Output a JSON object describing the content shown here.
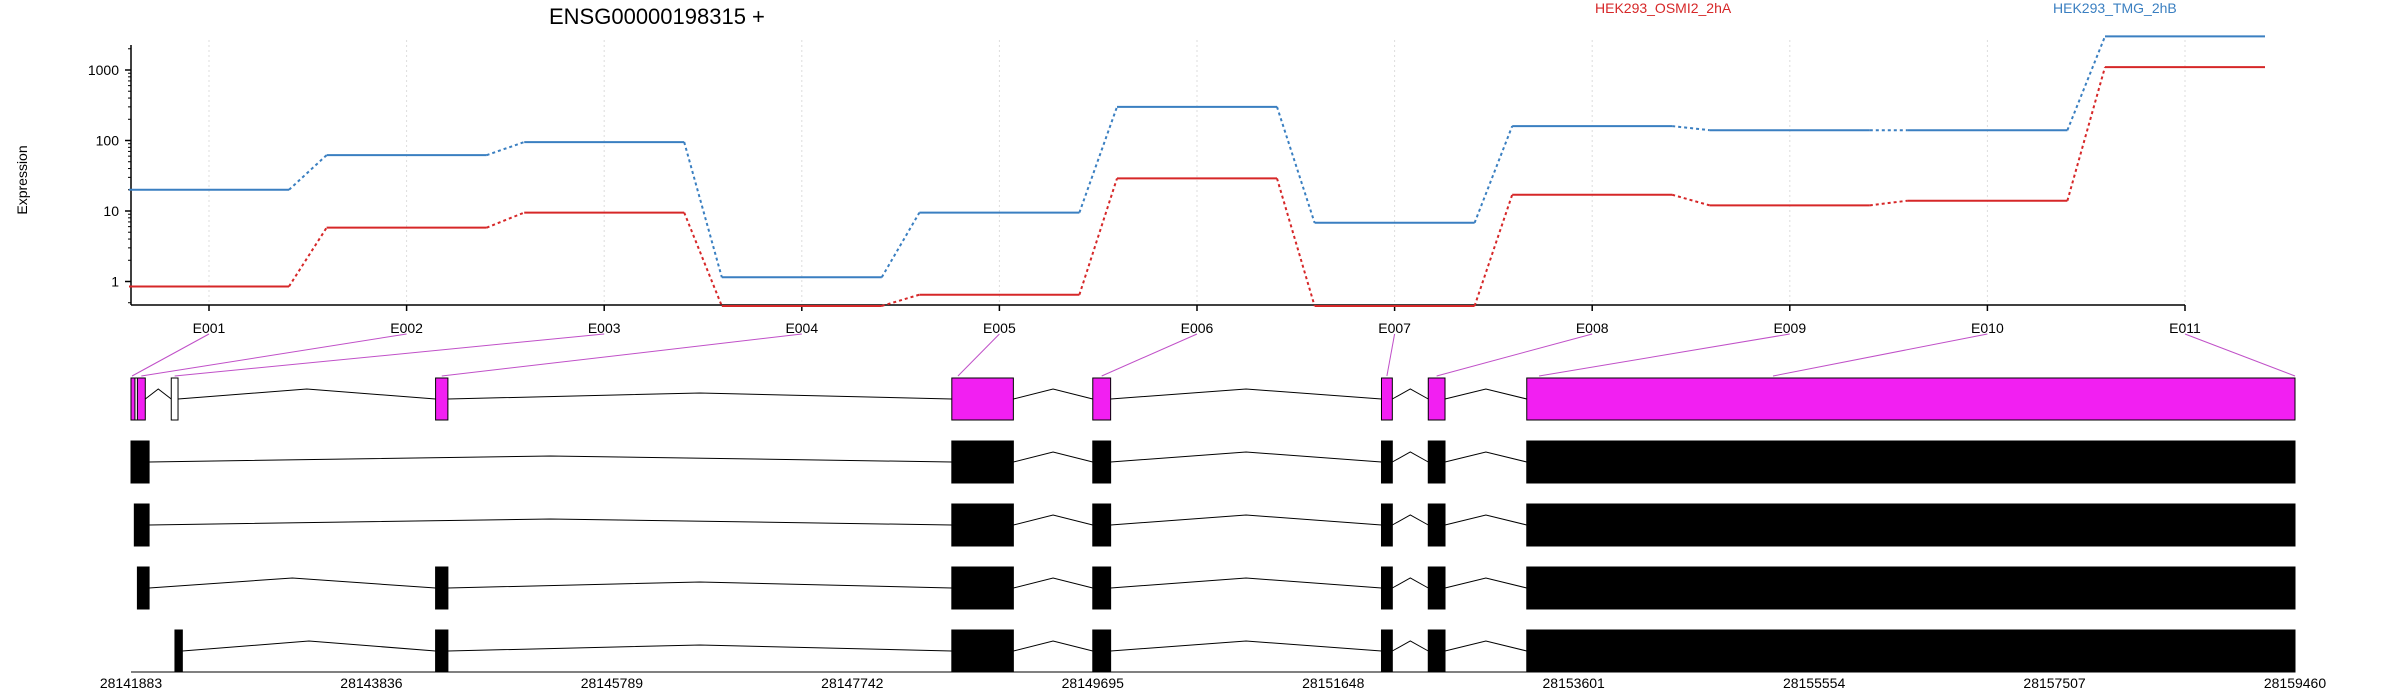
{
  "chart_data": [
    {
      "type": "line",
      "title": "ENSG00000198315 +",
      "xlabel": "",
      "ylabel": "Expression",
      "x_scale": "categorical",
      "y_scale": "log",
      "y_ticks": [
        "1",
        "10",
        "100",
        "1000"
      ],
      "categories": [
        "E001",
        "E002",
        "E003",
        "E004",
        "E005",
        "E006",
        "E007",
        "E008",
        "E009",
        "E010",
        "E011"
      ],
      "grid": "vertical dotted at each category",
      "legend": "top-right, text labels",
      "series": [
        {
          "name": "HEK293_OSMI2_2hA",
          "color": "#d62728",
          "values": [
            0.85,
            5.8,
            9.5,
            0.45,
            0.65,
            29,
            0.45,
            17,
            12,
            14,
            1100
          ]
        },
        {
          "name": "HEK293_TMG_2hB",
          "color": "#3a7fc1",
          "values": [
            20,
            62,
            95,
            1.15,
            9.5,
            300,
            6.8,
            160,
            140,
            140,
            3000
          ]
        }
      ]
    },
    {
      "type": "gene_structure",
      "x_ticks": [
        "28141883",
        "28143836",
        "28145789",
        "28147742",
        "28149695",
        "28151648",
        "28153601",
        "28155554",
        "28157507",
        "28159460"
      ],
      "x_range": [
        28141883,
        28159460
      ],
      "exon_color": "#f21ff2",
      "tracks": [
        {
          "exons": [
            [
              28141883,
              28141900
            ],
            [
              28141915,
              28141925
            ],
            [
              28141935,
              28141999
            ],
            [
              28142210,
              28142265
            ],
            [
              28144357,
              28144457
            ],
            [
              28148550,
              28149050
            ],
            [
              28149695,
              28149840
            ],
            [
              28152040,
              28152128
            ],
            [
              28152420,
              28152556
            ],
            [
              28153220,
              28159460
            ]
          ],
          "filled": [
            true,
            false,
            true,
            false,
            true,
            true,
            true,
            true,
            true,
            true
          ]
        },
        {
          "exons": [
            [
              28141883,
              28142030
            ],
            [
              28148550,
              28149050
            ],
            [
              28149695,
              28149840
            ],
            [
              28152040,
              28152128
            ],
            [
              28152420,
              28152556
            ],
            [
              28153220,
              28159460
            ]
          ]
        },
        {
          "exons": [
            [
              28141910,
              28142030
            ],
            [
              28148550,
              28149050
            ],
            [
              28149695,
              28149840
            ],
            [
              28152040,
              28152128
            ],
            [
              28152420,
              28152556
            ],
            [
              28153220,
              28159460
            ]
          ]
        },
        {
          "exons": [
            [
              28141935,
              28142030
            ],
            [
              28144357,
              28144457
            ],
            [
              28148550,
              28149050
            ],
            [
              28149695,
              28149840
            ],
            [
              28152040,
              28152128
            ],
            [
              28152420,
              28152556
            ],
            [
              28153220,
              28159460
            ]
          ]
        },
        {
          "exons": [
            [
              28142240,
              28142300
            ],
            [
              28144357,
              28144457
            ],
            [
              28148550,
              28149050
            ],
            [
              28149695,
              28149840
            ],
            [
              28152040,
              28152128
            ],
            [
              28152420,
              28152556
            ],
            [
              28153220,
              28159460
            ]
          ]
        }
      ]
    }
  ]
}
